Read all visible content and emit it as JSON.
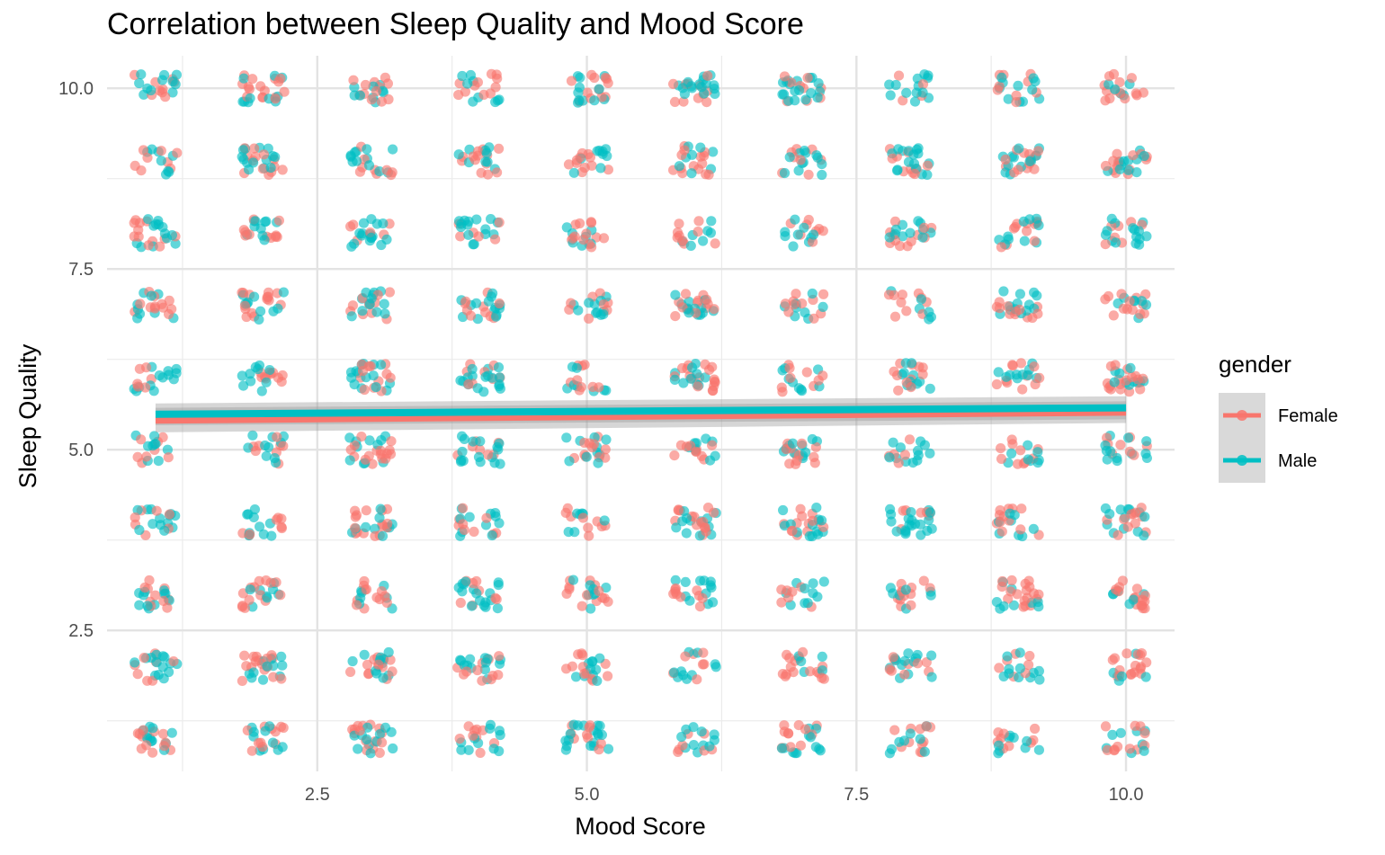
{
  "chart_data": {
    "type": "scatter",
    "title": "Correlation between Sleep Quality and Mood Score",
    "xlabel": "Mood Score",
    "ylabel": "Sleep Quality",
    "xlim": [
      0.55,
      10.45
    ],
    "ylim": [
      0.55,
      10.45
    ],
    "x_ticks": [
      2.5,
      5.0,
      7.5,
      10.0
    ],
    "y_ticks": [
      2.5,
      5.0,
      7.5,
      10.0
    ],
    "x_tick_labels": [
      "2.5",
      "5.0",
      "7.5",
      "10.0"
    ],
    "y_tick_labels": [
      "2.5",
      "5.0",
      "7.5",
      "10.0"
    ],
    "grid": true,
    "jitter": true,
    "point_grid": {
      "x_values": [
        1,
        2,
        3,
        4,
        5,
        6,
        7,
        8,
        9,
        10
      ],
      "y_values": [
        1,
        2,
        3,
        4,
        5,
        6,
        7,
        8,
        9,
        10
      ]
    },
    "legend": {
      "title": "gender",
      "position": "right"
    },
    "series": [
      {
        "name": "Female",
        "color": "#F8766D",
        "trend_line": {
          "x": [
            1,
            10
          ],
          "y": [
            5.41,
            5.52
          ],
          "ci_low": [
            5.24,
            5.37
          ],
          "ci_high": [
            5.58,
            5.67
          ]
        }
      },
      {
        "name": "Male",
        "color": "#00BFC4",
        "trend_line": {
          "x": [
            1,
            10
          ],
          "y": [
            5.49,
            5.58
          ],
          "ci_low": [
            5.34,
            5.42
          ],
          "ci_high": [
            5.64,
            5.74
          ]
        }
      }
    ]
  }
}
